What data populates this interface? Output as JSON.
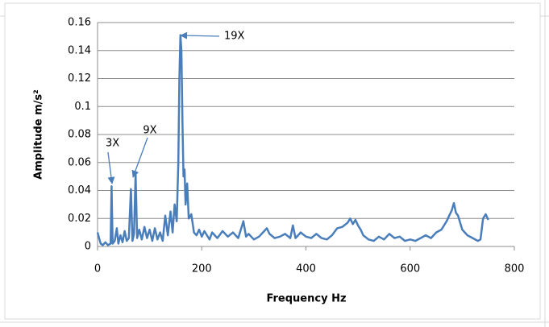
{
  "chart_data": {
    "type": "line",
    "x_label": "Frequency Hz",
    "y_label": "Amplitude m/s²",
    "color": "#4a7ebb",
    "x": [
      0,
      3,
      6,
      10,
      15,
      20,
      25,
      27,
      29,
      33,
      37,
      40,
      44,
      48,
      52,
      56,
      60,
      64,
      67,
      70,
      73,
      76,
      80,
      85,
      90,
      95,
      100,
      105,
      110,
      115,
      120,
      125,
      130,
      135,
      140,
      144,
      148,
      152,
      155,
      157,
      159,
      161,
      163,
      165,
      167,
      169,
      172,
      175,
      180,
      185,
      190,
      195,
      200,
      205,
      210,
      215,
      220,
      230,
      240,
      250,
      260,
      270,
      280,
      285,
      290,
      300,
      310,
      320,
      325,
      330,
      340,
      350,
      360,
      370,
      375,
      380,
      390,
      400,
      410,
      420,
      430,
      440,
      450,
      460,
      470,
      480,
      485,
      490,
      495,
      500,
      505,
      510,
      520,
      530,
      540,
      550,
      560,
      570,
      580,
      590,
      600,
      610,
      620,
      630,
      640,
      650,
      660,
      670,
      675,
      680,
      684,
      688,
      692,
      696,
      700,
      710,
      720,
      730,
      735,
      740,
      745,
      750
    ],
    "values": [
      0.01,
      0.006,
      0.002,
      0.001,
      0.003,
      0.001,
      0.002,
      0.043,
      0.002,
      0.004,
      0.013,
      0.002,
      0.008,
      0.003,
      0.011,
      0.004,
      0.006,
      0.041,
      0.004,
      0.009,
      0.052,
      0.006,
      0.012,
      0.005,
      0.014,
      0.006,
      0.012,
      0.004,
      0.013,
      0.005,
      0.01,
      0.004,
      0.022,
      0.008,
      0.025,
      0.01,
      0.03,
      0.018,
      0.06,
      0.12,
      0.151,
      0.14,
      0.09,
      0.05,
      0.055,
      0.03,
      0.045,
      0.02,
      0.023,
      0.01,
      0.008,
      0.012,
      0.007,
      0.011,
      0.008,
      0.005,
      0.01,
      0.006,
      0.011,
      0.007,
      0.01,
      0.006,
      0.018,
      0.007,
      0.009,
      0.005,
      0.007,
      0.011,
      0.013,
      0.009,
      0.006,
      0.007,
      0.009,
      0.006,
      0.015,
      0.006,
      0.01,
      0.007,
      0.006,
      0.009,
      0.006,
      0.005,
      0.008,
      0.013,
      0.014,
      0.017,
      0.02,
      0.016,
      0.019,
      0.015,
      0.012,
      0.008,
      0.005,
      0.004,
      0.007,
      0.005,
      0.009,
      0.006,
      0.007,
      0.004,
      0.005,
      0.004,
      0.006,
      0.008,
      0.006,
      0.01,
      0.012,
      0.018,
      0.022,
      0.026,
      0.031,
      0.024,
      0.022,
      0.017,
      0.012,
      0.008,
      0.006,
      0.004,
      0.005,
      0.02,
      0.023,
      0.019
    ],
    "xlim": [
      0,
      800
    ],
    "xticks": [
      0,
      200,
      400,
      600,
      800
    ],
    "ylim": [
      0,
      0.16
    ],
    "yticks": [
      0,
      0.02,
      0.04,
      0.06,
      0.08,
      0.1,
      0.12,
      0.14,
      0.16
    ],
    "grid": true,
    "annotations": [
      "3X",
      "9X",
      "19X"
    ]
  }
}
